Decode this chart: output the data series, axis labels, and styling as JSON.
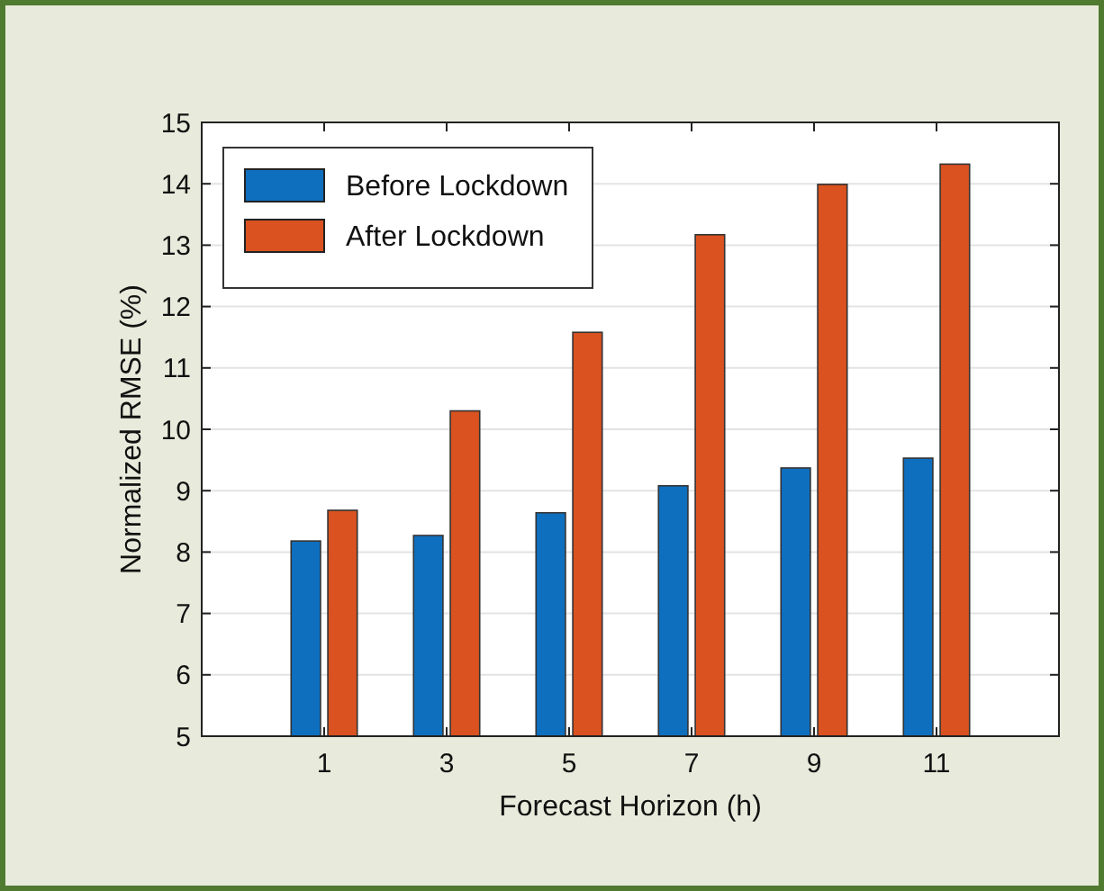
{
  "chart_data": {
    "type": "bar",
    "xlabel": "Forecast Horizon (h)",
    "ylabel": "Normalized RMSE (%)",
    "categories": [
      "1",
      "3",
      "5",
      "7",
      "9",
      "11"
    ],
    "series": [
      {
        "name": "Before Lockdown",
        "color": "#0f6fbf",
        "values": [
          8.18,
          8.27,
          8.64,
          9.08,
          9.37,
          9.53
        ]
      },
      {
        "name": "After Lockdown",
        "color": "#d95220",
        "values": [
          8.68,
          10.3,
          11.58,
          13.17,
          13.99,
          14.32
        ]
      }
    ],
    "ylim": [
      5,
      15
    ],
    "yticks": [
      5,
      6,
      7,
      8,
      9,
      10,
      11,
      12,
      13,
      14,
      15
    ],
    "grid": "y",
    "legend": "top left"
  }
}
